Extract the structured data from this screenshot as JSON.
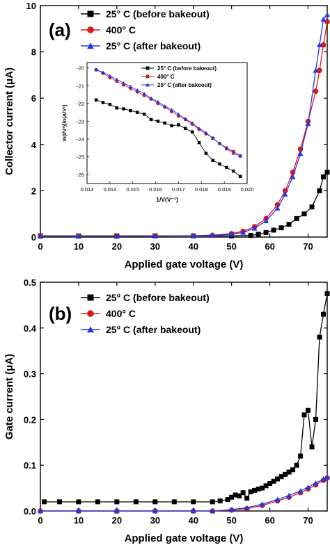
{
  "chart_data": [
    {
      "panel": "(a)",
      "type": "line",
      "xlabel": "Applied gate voltage (V)",
      "ylabel": "Collector current (μA)",
      "xlim": [
        0,
        75
      ],
      "ylim": [
        0,
        10
      ],
      "xticks": [
        0,
        10,
        20,
        30,
        40,
        50,
        60,
        70
      ],
      "yticks": [
        0,
        2,
        4,
        6,
        8,
        10
      ],
      "legend_position": "top-right",
      "series": [
        {
          "name": "25° C (before bakeout)",
          "color": "#000000",
          "marker": "square",
          "x": [
            0,
            10,
            20,
            30,
            40,
            50,
            55,
            57,
            59,
            61,
            63,
            65,
            67,
            69,
            71,
            73,
            74,
            75
          ],
          "y": [
            0.05,
            0.05,
            0.05,
            0.05,
            0.05,
            0.05,
            0.07,
            0.12,
            0.2,
            0.3,
            0.4,
            0.55,
            0.8,
            1.0,
            1.3,
            2.0,
            2.6,
            2.8
          ]
        },
        {
          "name": "400° C",
          "color": "#e8141b",
          "marker": "circle",
          "x": [
            0,
            10,
            20,
            30,
            40,
            45,
            50,
            53,
            56,
            59,
            62,
            64,
            66,
            68,
            70,
            72,
            73,
            74,
            75
          ],
          "y": [
            0.04,
            0.04,
            0.04,
            0.05,
            0.06,
            0.08,
            0.15,
            0.25,
            0.45,
            0.8,
            1.4,
            2.0,
            2.8,
            3.8,
            5.0,
            6.3,
            7.2,
            8.3,
            9.3
          ]
        },
        {
          "name": "25° C (after bakeout)",
          "color": "#2036e8",
          "marker": "triangle",
          "x": [
            0,
            10,
            20,
            30,
            40,
            45,
            50,
            53,
            56,
            59,
            62,
            64,
            66,
            68,
            70,
            72,
            73,
            74,
            75
          ],
          "y": [
            0.03,
            0.03,
            0.03,
            0.04,
            0.05,
            0.07,
            0.12,
            0.2,
            0.38,
            0.7,
            1.25,
            1.85,
            2.6,
            3.6,
            4.9,
            7.2,
            8.3,
            9.4,
            9.6
          ]
        }
      ],
      "inset": {
        "type": "line",
        "xlabel": "1/V(V⁻¹)",
        "ylabel": "ln(I/V²)[ln(A/V²]",
        "xlim": [
          0.013,
          0.02
        ],
        "ylim": [
          -26.5,
          -19.7
        ],
        "xticks": [
          "0.013",
          "0.014",
          "0.015",
          "0.016",
          "0.017",
          "0.018",
          "0.019",
          "0.020"
        ],
        "yticks": [
          "-20",
          "-21",
          "-22",
          "-23",
          "-24",
          "-25",
          "-26"
        ],
        "legend_position": "top-right",
        "series": [
          {
            "name": "25° C (before bakeout)",
            "color": "#000000",
            "marker": "square",
            "x": [
              0.0134,
              0.0137,
              0.014,
              0.0143,
              0.0146,
              0.0149,
              0.0152,
              0.0155,
              0.0158,
              0.0161,
              0.0164,
              0.0167,
              0.017,
              0.0173,
              0.0176,
              0.0179,
              0.0182,
              0.0185,
              0.0188,
              0.0191,
              0.0194,
              0.0197
            ],
            "y": [
              -21.8,
              -21.95,
              -22.05,
              -22.25,
              -22.3,
              -22.4,
              -22.5,
              -22.6,
              -22.9,
              -23.0,
              -23.1,
              -23.25,
              -23.2,
              -23.4,
              -23.6,
              -24.2,
              -24.8,
              -25.2,
              -25.4,
              -25.6,
              -25.8,
              -26.1
            ]
          },
          {
            "name": "400° C",
            "color": "#e8141b",
            "marker": "circle",
            "x": [
              0.0134,
              0.0137,
              0.014,
              0.0143,
              0.0146,
              0.0149,
              0.0152,
              0.0155,
              0.0158,
              0.0161,
              0.0164,
              0.0167,
              0.017,
              0.0173,
              0.0176,
              0.0179,
              0.0182,
              0.0185,
              0.0188,
              0.0191,
              0.0194,
              0.0197
            ],
            "y": [
              -20.1,
              -20.3,
              -20.55,
              -20.75,
              -20.95,
              -21.15,
              -21.35,
              -21.55,
              -21.75,
              -22.0,
              -22.2,
              -22.45,
              -22.7,
              -22.9,
              -23.15,
              -23.45,
              -23.7,
              -23.95,
              -24.25,
              -24.5,
              -24.7,
              -24.95
            ]
          },
          {
            "name": "25° C (after bakeout)",
            "color": "#2036e8",
            "marker": "triangle",
            "x": [
              0.0134,
              0.0137,
              0.014,
              0.0143,
              0.0146,
              0.0149,
              0.0152,
              0.0155,
              0.0158,
              0.0161,
              0.0164,
              0.0167,
              0.017,
              0.0173,
              0.0176,
              0.0179,
              0.0182,
              0.0185,
              0.0188,
              0.0191,
              0.0194,
              0.0197
            ],
            "y": [
              -20.1,
              -20.25,
              -20.45,
              -20.65,
              -20.85,
              -21.05,
              -21.25,
              -21.45,
              -21.7,
              -21.9,
              -22.15,
              -22.35,
              -22.6,
              -22.85,
              -23.1,
              -23.4,
              -23.65,
              -23.95,
              -24.25,
              -24.55,
              -24.8,
              -24.95
            ]
          }
        ]
      }
    },
    {
      "panel": "(b)",
      "type": "line",
      "xlabel": "Applied gate voltage (V)",
      "ylabel": "Gate current (μA)",
      "xlim": [
        0,
        75
      ],
      "ylim": [
        0,
        0.5
      ],
      "xticks": [
        0,
        10,
        20,
        30,
        40,
        50,
        60,
        70
      ],
      "yticks": [
        0.0,
        0.1,
        0.2,
        0.3,
        0.4,
        0.5
      ],
      "legend_position": "top-right",
      "series": [
        {
          "name": "25° C (before bakeout)",
          "color": "#000000",
          "marker": "square",
          "x": [
            1,
            5,
            10,
            15,
            20,
            25,
            30,
            35,
            40,
            45,
            47,
            49,
            50,
            51,
            52,
            53,
            54,
            55,
            56,
            57,
            58,
            59,
            60,
            61,
            62,
            63,
            64,
            65,
            66,
            67,
            68,
            69,
            70,
            71,
            72,
            73,
            74,
            75
          ],
          "y": [
            0.02,
            0.02,
            0.02,
            0.02,
            0.02,
            0.02,
            0.02,
            0.02,
            0.02,
            0.02,
            0.022,
            0.025,
            0.03,
            0.035,
            0.033,
            0.04,
            0.028,
            0.042,
            0.045,
            0.048,
            0.05,
            0.055,
            0.06,
            0.065,
            0.07,
            0.075,
            0.08,
            0.085,
            0.09,
            0.1,
            0.12,
            0.21,
            0.22,
            0.14,
            0.2,
            0.38,
            0.43,
            0.475
          ]
        },
        {
          "name": "400° C",
          "color": "#e8141b",
          "marker": "circle",
          "x": [
            0,
            10,
            20,
            30,
            40,
            45,
            50,
            54,
            58,
            62,
            65,
            68,
            70,
            72,
            74,
            75
          ],
          "y": [
            0.0,
            0.0,
            0.0,
            0.0,
            0.0,
            0.0,
            0.002,
            0.005,
            0.012,
            0.022,
            0.03,
            0.04,
            0.048,
            0.057,
            0.067,
            0.072
          ]
        },
        {
          "name": "25° C (after bakeout)",
          "color": "#2036e8",
          "marker": "triangle",
          "x": [
            0,
            10,
            20,
            30,
            40,
            45,
            50,
            54,
            58,
            62,
            65,
            68,
            70,
            72,
            74,
            75
          ],
          "y": [
            0.0,
            0.0,
            0.0,
            0.0,
            0.0,
            0.0,
            0.003,
            0.007,
            0.015,
            0.025,
            0.034,
            0.044,
            0.052,
            0.061,
            0.07,
            0.075
          ]
        }
      ]
    }
  ]
}
